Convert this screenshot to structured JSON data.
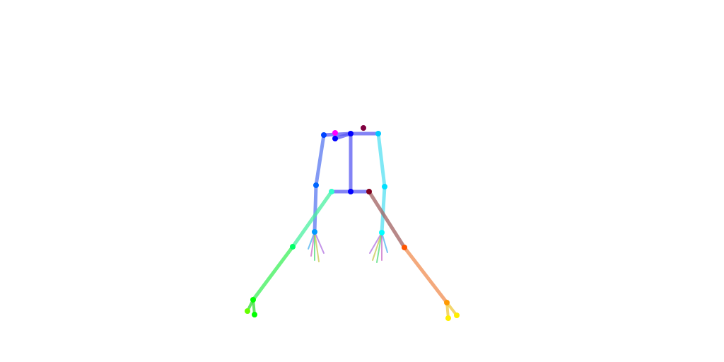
{
  "figure": {
    "kind": "pose-skeleton",
    "background_color": "#ffffff",
    "bone_colors": {
      "neck": "#5a5af2",
      "left_shoulder": "#5a5af2",
      "right_shoulder": "#5a5af2",
      "left_arm": "#5a78f0",
      "right_arm": "#55e0f2",
      "spine": "#5a5af2",
      "left_leg": "#4af0a0",
      "right_leg": "#a06060",
      "left_lower_leg": "#3cf05a",
      "right_lower_leg": "#f08c50",
      "left_foot": "#32dc32",
      "right_foot": "#f0c83c",
      "left_hand_fingers": "#c86ec8",
      "right_hand_fingers": "#c86ec8"
    },
    "joint_colors": {
      "nose": "#0000ff",
      "neck": "#0000ff",
      "left_shoulder": "#0044ff",
      "right_shoulder": "#00c8ff",
      "left_elbow": "#0066ff",
      "right_elbow": "#00e0ff",
      "left_wrist": "#0099ff",
      "right_wrist": "#00ffff",
      "mid_hip": "#0000ff",
      "left_hip": "#33ffcc",
      "right_hip": "#800020",
      "left_knee": "#00ff66",
      "right_knee": "#ff5500",
      "left_ankle": "#00ff00",
      "right_ankle": "#ff9900",
      "head_top": "#800040",
      "eye": "#ff00ff",
      "left_toe": "#66ff00",
      "right_toe": "#ffee00"
    }
  }
}
